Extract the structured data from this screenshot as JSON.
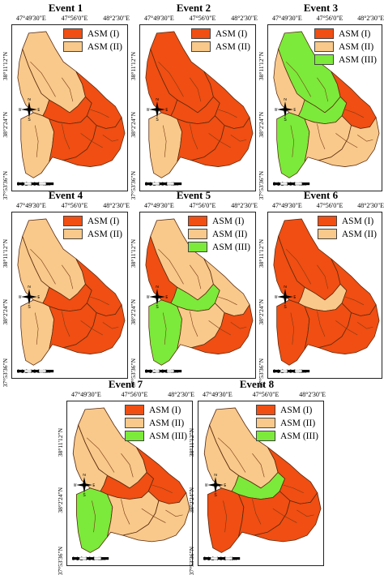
{
  "colors": {
    "asm1": "#f04e12",
    "asm2": "#f8c98a",
    "asm3": "#7bea3a"
  },
  "legend_labels": {
    "asm1": "ASM (I)",
    "asm2": "ASM (II)",
    "asm3": "ASM (III)"
  },
  "coords": {
    "lon1": "47°49'30\"E",
    "lon2": "47°56'0\"E",
    "lon3": "48°2'30\"E",
    "lat1": "38°11'12\"N",
    "lat2": "38°2'24\"N",
    "lat3": "37°53'36\"N"
  },
  "scale": {
    "ticks": "0 1 2   4   6   8",
    "unit": "Km"
  },
  "compass": {
    "n": "N",
    "s": "S",
    "e": "E",
    "w": "W"
  },
  "events": [
    {
      "title": "Event 1",
      "legend": [
        "asm1",
        "asm2"
      ],
      "zones": {
        "north": "asm2",
        "midwest": "asm2",
        "midcenter": "asm1",
        "mideast": "asm1",
        "southwest": "asm2",
        "southcenter": "asm1",
        "southeast": "asm1"
      }
    },
    {
      "title": "Event 2",
      "legend": [
        "asm1",
        "asm2"
      ],
      "zones": {
        "north": "asm1",
        "midwest": "asm1",
        "midcenter": "asm1",
        "mideast": "asm1",
        "southwest": "asm2",
        "southcenter": "asm1",
        "southeast": "asm1"
      }
    },
    {
      "title": "Event 3",
      "legend": [
        "asm1",
        "asm2",
        "asm3"
      ],
      "zones": {
        "north": "asm3",
        "midwest": "asm2",
        "midcenter": "asm3",
        "mideast": "asm1",
        "southwest": "asm3",
        "southcenter": "asm2",
        "southeast": "asm2"
      }
    },
    {
      "title": "Event 4",
      "legend": [
        "asm1",
        "asm2"
      ],
      "zones": {
        "north": "asm2",
        "midwest": "asm2",
        "midcenter": "asm1",
        "mideast": "asm1",
        "southwest": "asm2",
        "southcenter": "asm1",
        "southeast": "asm1"
      }
    },
    {
      "title": "Event 5",
      "legend": [
        "asm1",
        "asm2",
        "asm3"
      ],
      "zones": {
        "north": "asm2",
        "midwest": "asm1",
        "midcenter": "asm3",
        "mideast": "asm2",
        "southwest": "asm3",
        "southcenter": "asm2",
        "southeast": "asm1"
      }
    },
    {
      "title": "Event 6",
      "legend": [
        "asm1",
        "asm2"
      ],
      "zones": {
        "north": "asm1",
        "midwest": "asm1",
        "midcenter": "asm2",
        "mideast": "asm1",
        "southwest": "asm1",
        "southcenter": "asm1",
        "southeast": "asm1"
      }
    },
    {
      "title": "Event 7",
      "legend": [
        "asm1",
        "asm2",
        "asm3"
      ],
      "zones": {
        "north": "asm2",
        "midwest": "asm2",
        "midcenter": "asm1",
        "mideast": "asm1",
        "southwest": "asm3",
        "southcenter": "asm2",
        "southeast": "asm2"
      }
    },
    {
      "title": "Event 8",
      "legend": [
        "asm1",
        "asm2",
        "asm3"
      ],
      "zones": {
        "north": "asm2",
        "midwest": "asm2",
        "midcenter": "asm3",
        "mideast": "asm1",
        "southwest": "asm1",
        "southcenter": "asm1",
        "southeast": "asm1"
      }
    }
  ]
}
